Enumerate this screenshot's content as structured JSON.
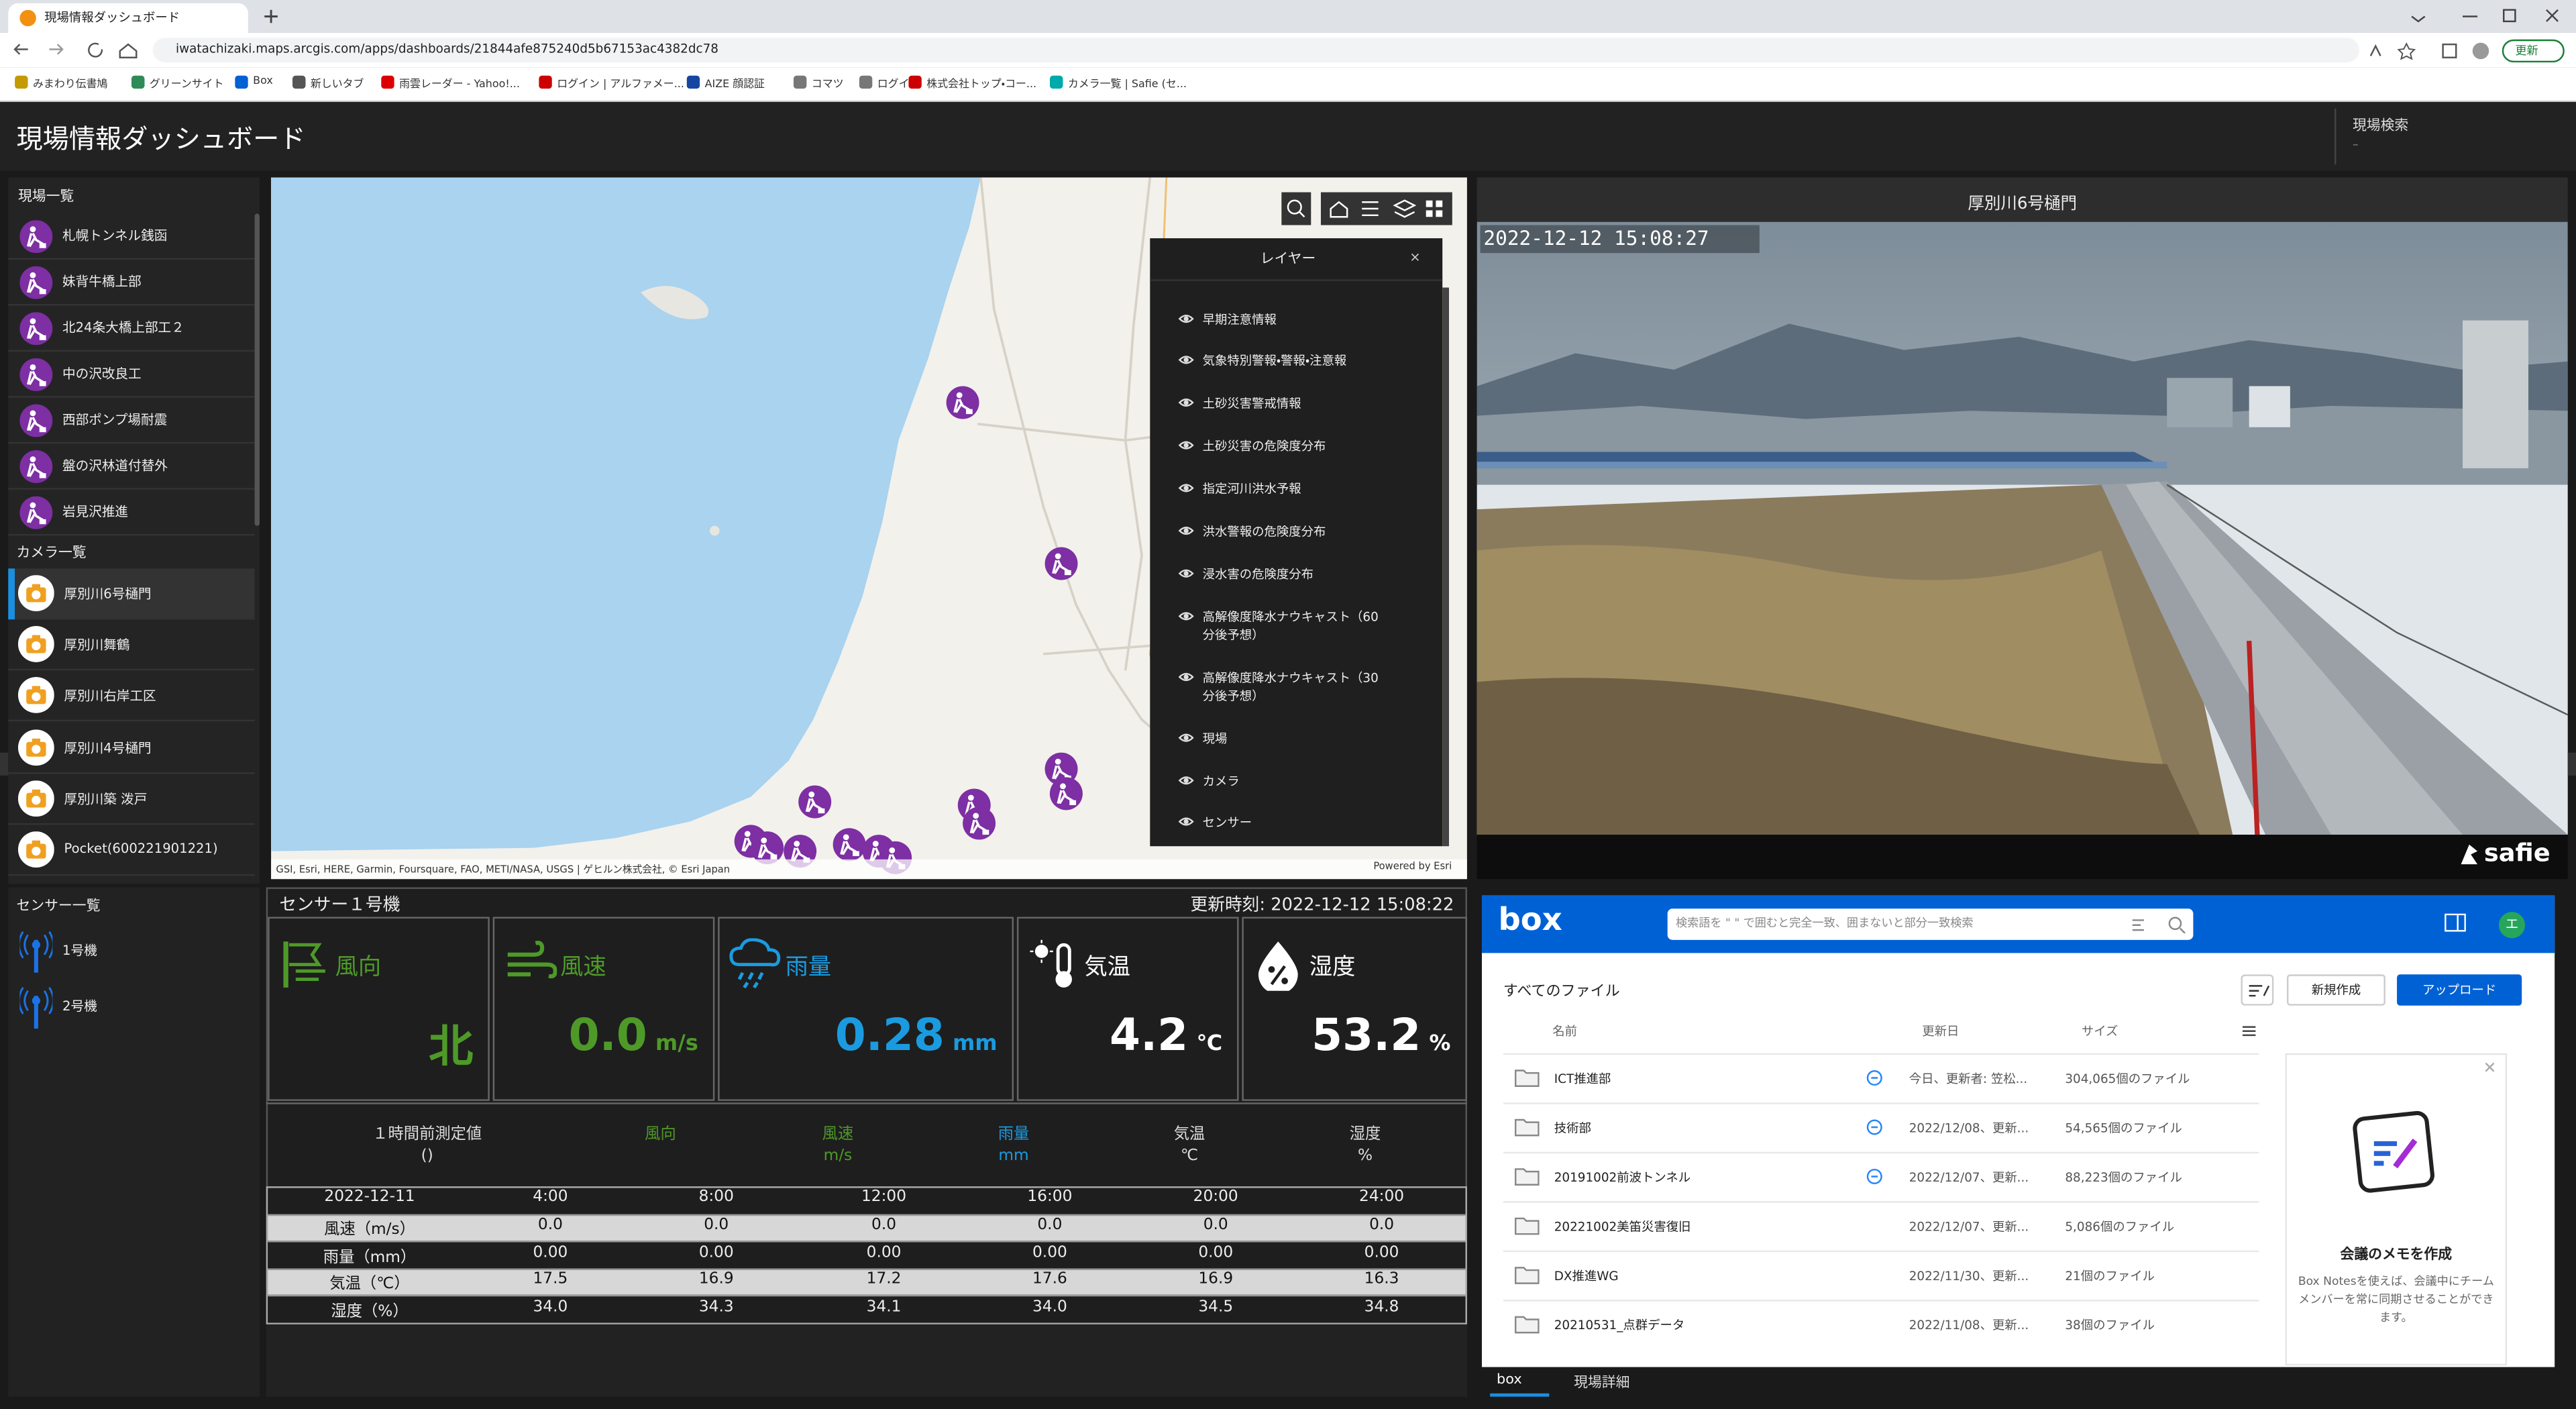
{
  "browser": {
    "tab_title": "現場情報ダッシュボード",
    "url": "iwatachizaki.maps.arcgis.com/apps/dashboards/21844afe875240d5b67153ac4382dc78",
    "bookmarks": [
      "みまわり伝書鳩",
      "グリーンサイト",
      "Box",
      "新しいタブ",
      "雨雲レーダー - Yahoo!...",
      "ログイン | アルファメー...",
      "AIZE 顔認証",
      "コマツ",
      "ログイン",
      "株式会社トップ・コー...",
      "カメラ一覧 | Safie (セ..."
    ],
    "update_button": "更新"
  },
  "header": {
    "title": "現場情報ダッシュボード",
    "search_label": "現場検索",
    "search_value": "–"
  },
  "site_list": {
    "title": "現場一覧",
    "items": [
      "札幌トンネル銭函",
      "妹背牛橋上部",
      "北24条大橋上部工２",
      "中の沢改良工",
      "西部ポンプ場耐震",
      "盤の沢林道付替外",
      "岩見沢推進"
    ]
  },
  "camera_list": {
    "title": "カメラ一覧",
    "items": [
      "厚別川6号樋門",
      "厚別川舞鶴",
      "厚別川右岸工区",
      "厚別川4号樋門",
      "厚別川築 泼戸",
      "Pocket(600221901221)"
    ]
  },
  "sensor_list": {
    "title": "センサー一覧",
    "items": [
      "1号機",
      "2号機"
    ]
  },
  "map": {
    "layer_panel": {
      "title": "レイヤー",
      "close": "×",
      "items": [
        "早期注意情報",
        "気象特別警報・警報・注意報",
        "土砂災害警戒情報",
        "土砂災害の危険度分布",
        "指定河川洪水予報",
        "洪水警報の危険度分布",
        "浸水害の危険度分布",
        "高解像度降水ナウキャスト（60分後予想）",
        "高解像度降水ナウキャスト（30分後予想）",
        "現場",
        "カメラ",
        "センサー"
      ]
    },
    "attribution": "GSI, Esri, HERE, Garmin, Foursquare, FAO, METI/NASA, USGS | ゲヒルン株式会社, © Esri Japan",
    "powered_by": "Powered by Esri"
  },
  "camera_view": {
    "title": "厚別川6号樋門",
    "timestamp": "2022-12-12 15:08:27",
    "brand": "safie"
  },
  "sensor_panel": {
    "title": "センサー１号機",
    "updated": "更新時刻: 2022-12-12 15:08:22",
    "tiles": [
      {
        "label": "風向",
        "value": "北"
      },
      {
        "label": "風速",
        "value": "0.0",
        "unit": "m/s"
      },
      {
        "label": "雨量",
        "value": "0.28",
        "unit": "mm"
      },
      {
        "label": "気温",
        "value": "4.2",
        "unit": "℃"
      },
      {
        "label": "湿度",
        "value": "53.2",
        "unit": "%"
      }
    ],
    "hour_ago": {
      "label": "１時間前測定値",
      "sub": "()",
      "columns": [
        {
          "label": "風向"
        },
        {
          "label": "風速",
          "unit": "m/s"
        },
        {
          "label": "雨量",
          "unit": "mm"
        },
        {
          "label": "気温",
          "unit": "℃"
        },
        {
          "label": "湿度",
          "unit": "%"
        }
      ]
    },
    "table": {
      "header": [
        "2022-12-11",
        "4:00",
        "8:00",
        "12:00",
        "16:00",
        "20:00",
        "24:00"
      ],
      "rows": [
        [
          "風速（m/s）",
          "0.0",
          "0.0",
          "0.0",
          "0.0",
          "0.0",
          "0.0"
        ],
        [
          "雨量（mm）",
          "0.00",
          "0.00",
          "0.00",
          "0.00",
          "0.00",
          "0.00"
        ],
        [
          "気温（℃）",
          "17.5",
          "16.9",
          "17.2",
          "17.6",
          "16.9",
          "16.3"
        ],
        [
          "湿度（%）",
          "34.0",
          "34.3",
          "34.1",
          "34.0",
          "34.5",
          "34.8"
        ]
      ]
    }
  },
  "box": {
    "logo": "box",
    "search_placeholder": "検索語を \" \" で囲むと完全一致、囲まないと部分一致検索",
    "avatar": "エ",
    "folder_title": "すべてのファイル",
    "new_button": "新規作成",
    "upload_button": "アップロード",
    "columns": [
      "名前",
      "更新日",
      "サイズ"
    ],
    "rows": [
      {
        "name": "ICT推進部",
        "updated": "今日、更新者: 笠松...",
        "size": "304,065個のファイル"
      },
      {
        "name": "技術部",
        "updated": "2022/12/08、更新...",
        "size": "54,565個のファイル"
      },
      {
        "name": "20191002前波トンネル",
        "updated": "2022/12/07、更新...",
        "size": "88,223個のファイル"
      },
      {
        "name": "20221002美笛災害復旧",
        "updated": "2022/12/07、更新...",
        "size": "5,086個のファイル"
      },
      {
        "name": "DX推進WG",
        "updated": "2022/11/30、更新...",
        "size": "21個のファイル"
      },
      {
        "name": "20210531_点群データ",
        "updated": "2022/11/08、更新...",
        "size": "38個のファイル"
      }
    ],
    "notes_card": {
      "title": "会議のメモを作成",
      "text": "Box Notesを使えば、会議中にチームメンバーを常に同期させることができます。"
    }
  },
  "bottom_tabs": [
    "box",
    "現場詳細"
  ]
}
